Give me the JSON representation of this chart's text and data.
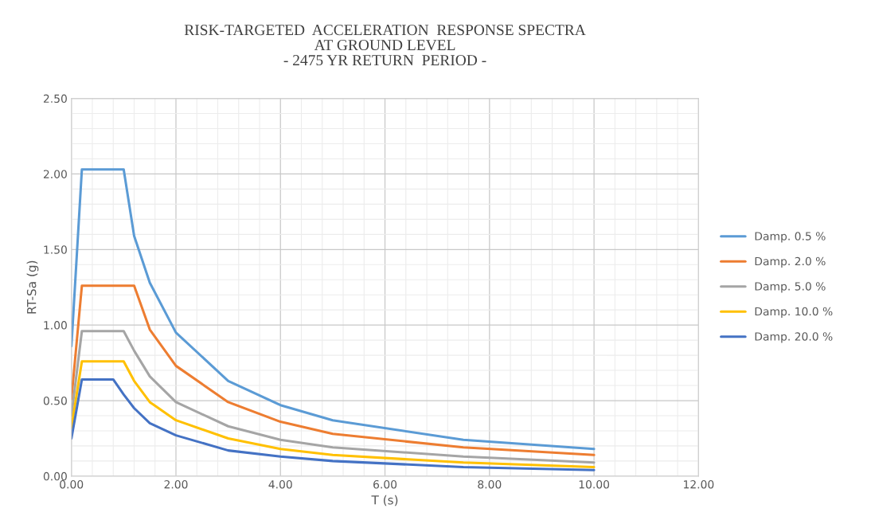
{
  "chart_data": {
    "type": "line",
    "title": "RISK-TARGETED  ACCELERATION  RESPONSE SPECTRA\nAT GROUND LEVEL\n- 2475 YR RETURN  PERIOD -",
    "xlabel": "T (s)",
    "ylabel": "RT-Sa (g)",
    "xlim": [
      0,
      12
    ],
    "xticks": [
      {
        "value": 0,
        "label": "0.00"
      },
      {
        "value": 2,
        "label": "2.00"
      },
      {
        "value": 4,
        "label": "4.00"
      },
      {
        "value": 6,
        "label": "6.00"
      },
      {
        "value": 8,
        "label": "8.00"
      },
      {
        "value": 10,
        "label": "10.00"
      },
      {
        "value": 12,
        "label": "12.00"
      }
    ],
    "ylim": [
      0,
      2.5
    ],
    "yticks": [
      {
        "value": 0,
        "label": "0.00"
      },
      {
        "value": 0.5,
        "label": "0.50"
      },
      {
        "value": 1,
        "label": "1.00"
      },
      {
        "value": 1.5,
        "label": "1.50"
      },
      {
        "value": 2,
        "label": "2.00"
      },
      {
        "value": 2.5,
        "label": "2.50"
      }
    ],
    "grid": true,
    "legend": "right",
    "marker": "none",
    "line_style": "solid",
    "series": [
      {
        "name": "Damp. 0.5 %",
        "color": "#5b9bd5",
        "x": [
          0,
          0.2,
          1.0,
          1.2,
          1.5,
          2,
          3,
          4,
          5,
          7.5,
          10
        ],
        "values": [
          0.86,
          2.03,
          2.03,
          1.59,
          1.28,
          0.95,
          0.63,
          0.47,
          0.37,
          0.24,
          0.18
        ]
      },
      {
        "name": "Damp. 2.0 %",
        "color": "#ed7d31",
        "x": [
          0,
          0.2,
          1.2,
          1.5,
          2,
          3,
          4,
          5,
          7.5,
          10
        ],
        "values": [
          0.51,
          1.26,
          1.26,
          0.97,
          0.73,
          0.49,
          0.36,
          0.28,
          0.19,
          0.14
        ]
      },
      {
        "name": "Damp. 5.0 %",
        "color": "#a5a5a5",
        "x": [
          0,
          0.2,
          1.0,
          1.2,
          1.5,
          2,
          3,
          4,
          5,
          7.5,
          10
        ],
        "values": [
          0.4,
          0.96,
          0.96,
          0.83,
          0.66,
          0.49,
          0.33,
          0.24,
          0.19,
          0.13,
          0.09
        ]
      },
      {
        "name": "Damp. 10.0 %",
        "color": "#ffc000",
        "x": [
          0,
          0.2,
          1.0,
          1.2,
          1.5,
          2,
          3,
          4,
          5,
          7.5,
          10
        ],
        "values": [
          0.32,
          0.76,
          0.76,
          0.63,
          0.49,
          0.37,
          0.25,
          0.18,
          0.14,
          0.09,
          0.06
        ]
      },
      {
        "name": "Damp. 20.0 %",
        "color": "#4472c4",
        "x": [
          0,
          0.2,
          0.8,
          1.0,
          1.2,
          1.5,
          2,
          3,
          4,
          5,
          7.5,
          10
        ],
        "values": [
          0.25,
          0.64,
          0.64,
          0.54,
          0.45,
          0.35,
          0.27,
          0.17,
          0.13,
          0.1,
          0.06,
          0.04
        ]
      }
    ]
  }
}
